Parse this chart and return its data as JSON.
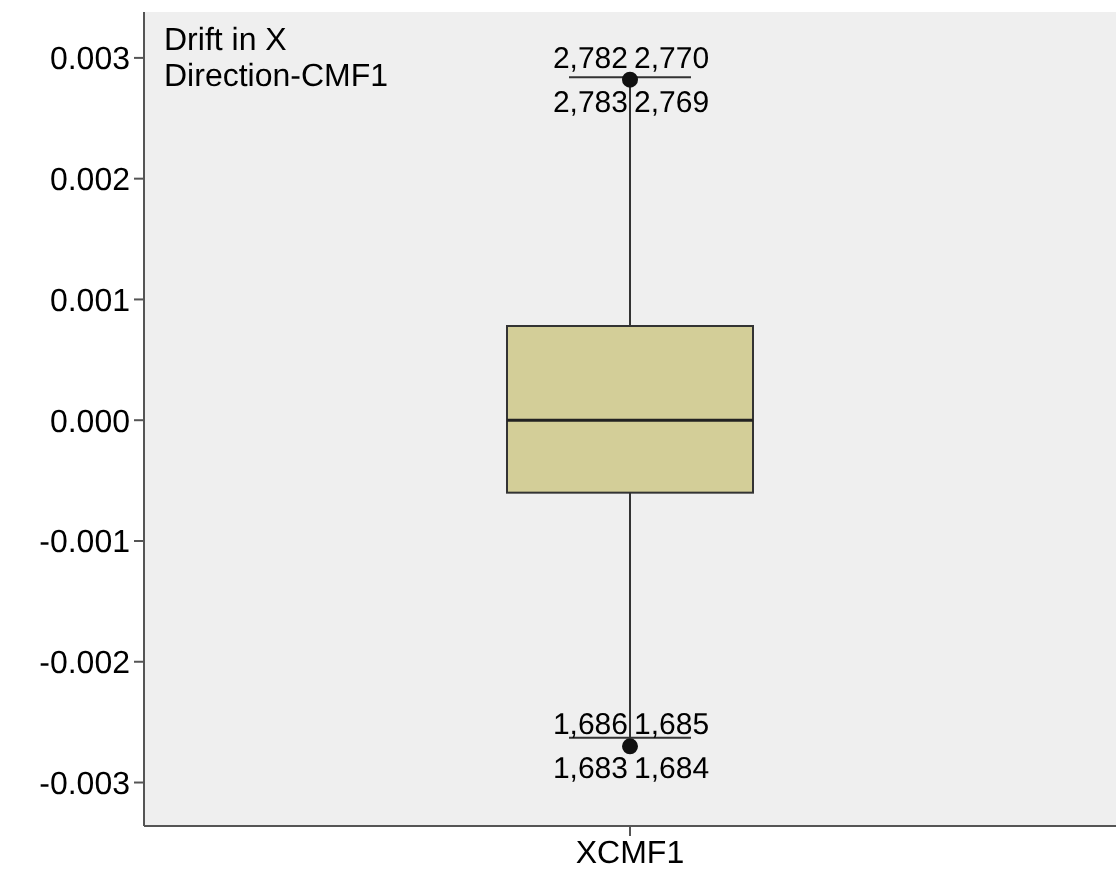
{
  "chart_data": {
    "type": "box",
    "title": "Drift in X Direction-CMF1",
    "categories": [
      "XCMF1"
    ],
    "boxes": [
      {
        "low": -0.00263,
        "q1": -0.0006,
        "median": 0.0,
        "q3": 0.00078,
        "high": 0.00284,
        "outliers": [
          0.00282,
          -0.0027
        ]
      }
    ],
    "color": "#d3ce98",
    "ylim": [
      -0.00336,
      0.00338
    ],
    "yticks": [
      -0.003,
      -0.002,
      -0.001,
      {
        "value": 0,
        "label": "0.000"
      },
      0.001,
      0.002,
      0.003
    ],
    "grid": false,
    "legend": false,
    "annotations": [
      {
        "text": "2,782",
        "x": "XCMF1",
        "y": 0.00282
      },
      {
        "text": "2,770",
        "x": "XCMF1",
        "y": 0.00282
      },
      {
        "text": "2,783",
        "x": "XCMF1",
        "y": 0.00282
      },
      {
        "text": "2,769",
        "x": "XCMF1",
        "y": 0.00282
      },
      {
        "text": "1,686",
        "x": "XCMF1",
        "y": -0.0027
      },
      {
        "text": "1,685",
        "x": "XCMF1",
        "y": -0.0027
      },
      {
        "text": "1,683",
        "x": "XCMF1",
        "y": -0.0027
      },
      {
        "text": "1,684",
        "x": "XCMF1",
        "y": -0.0027
      }
    ]
  }
}
